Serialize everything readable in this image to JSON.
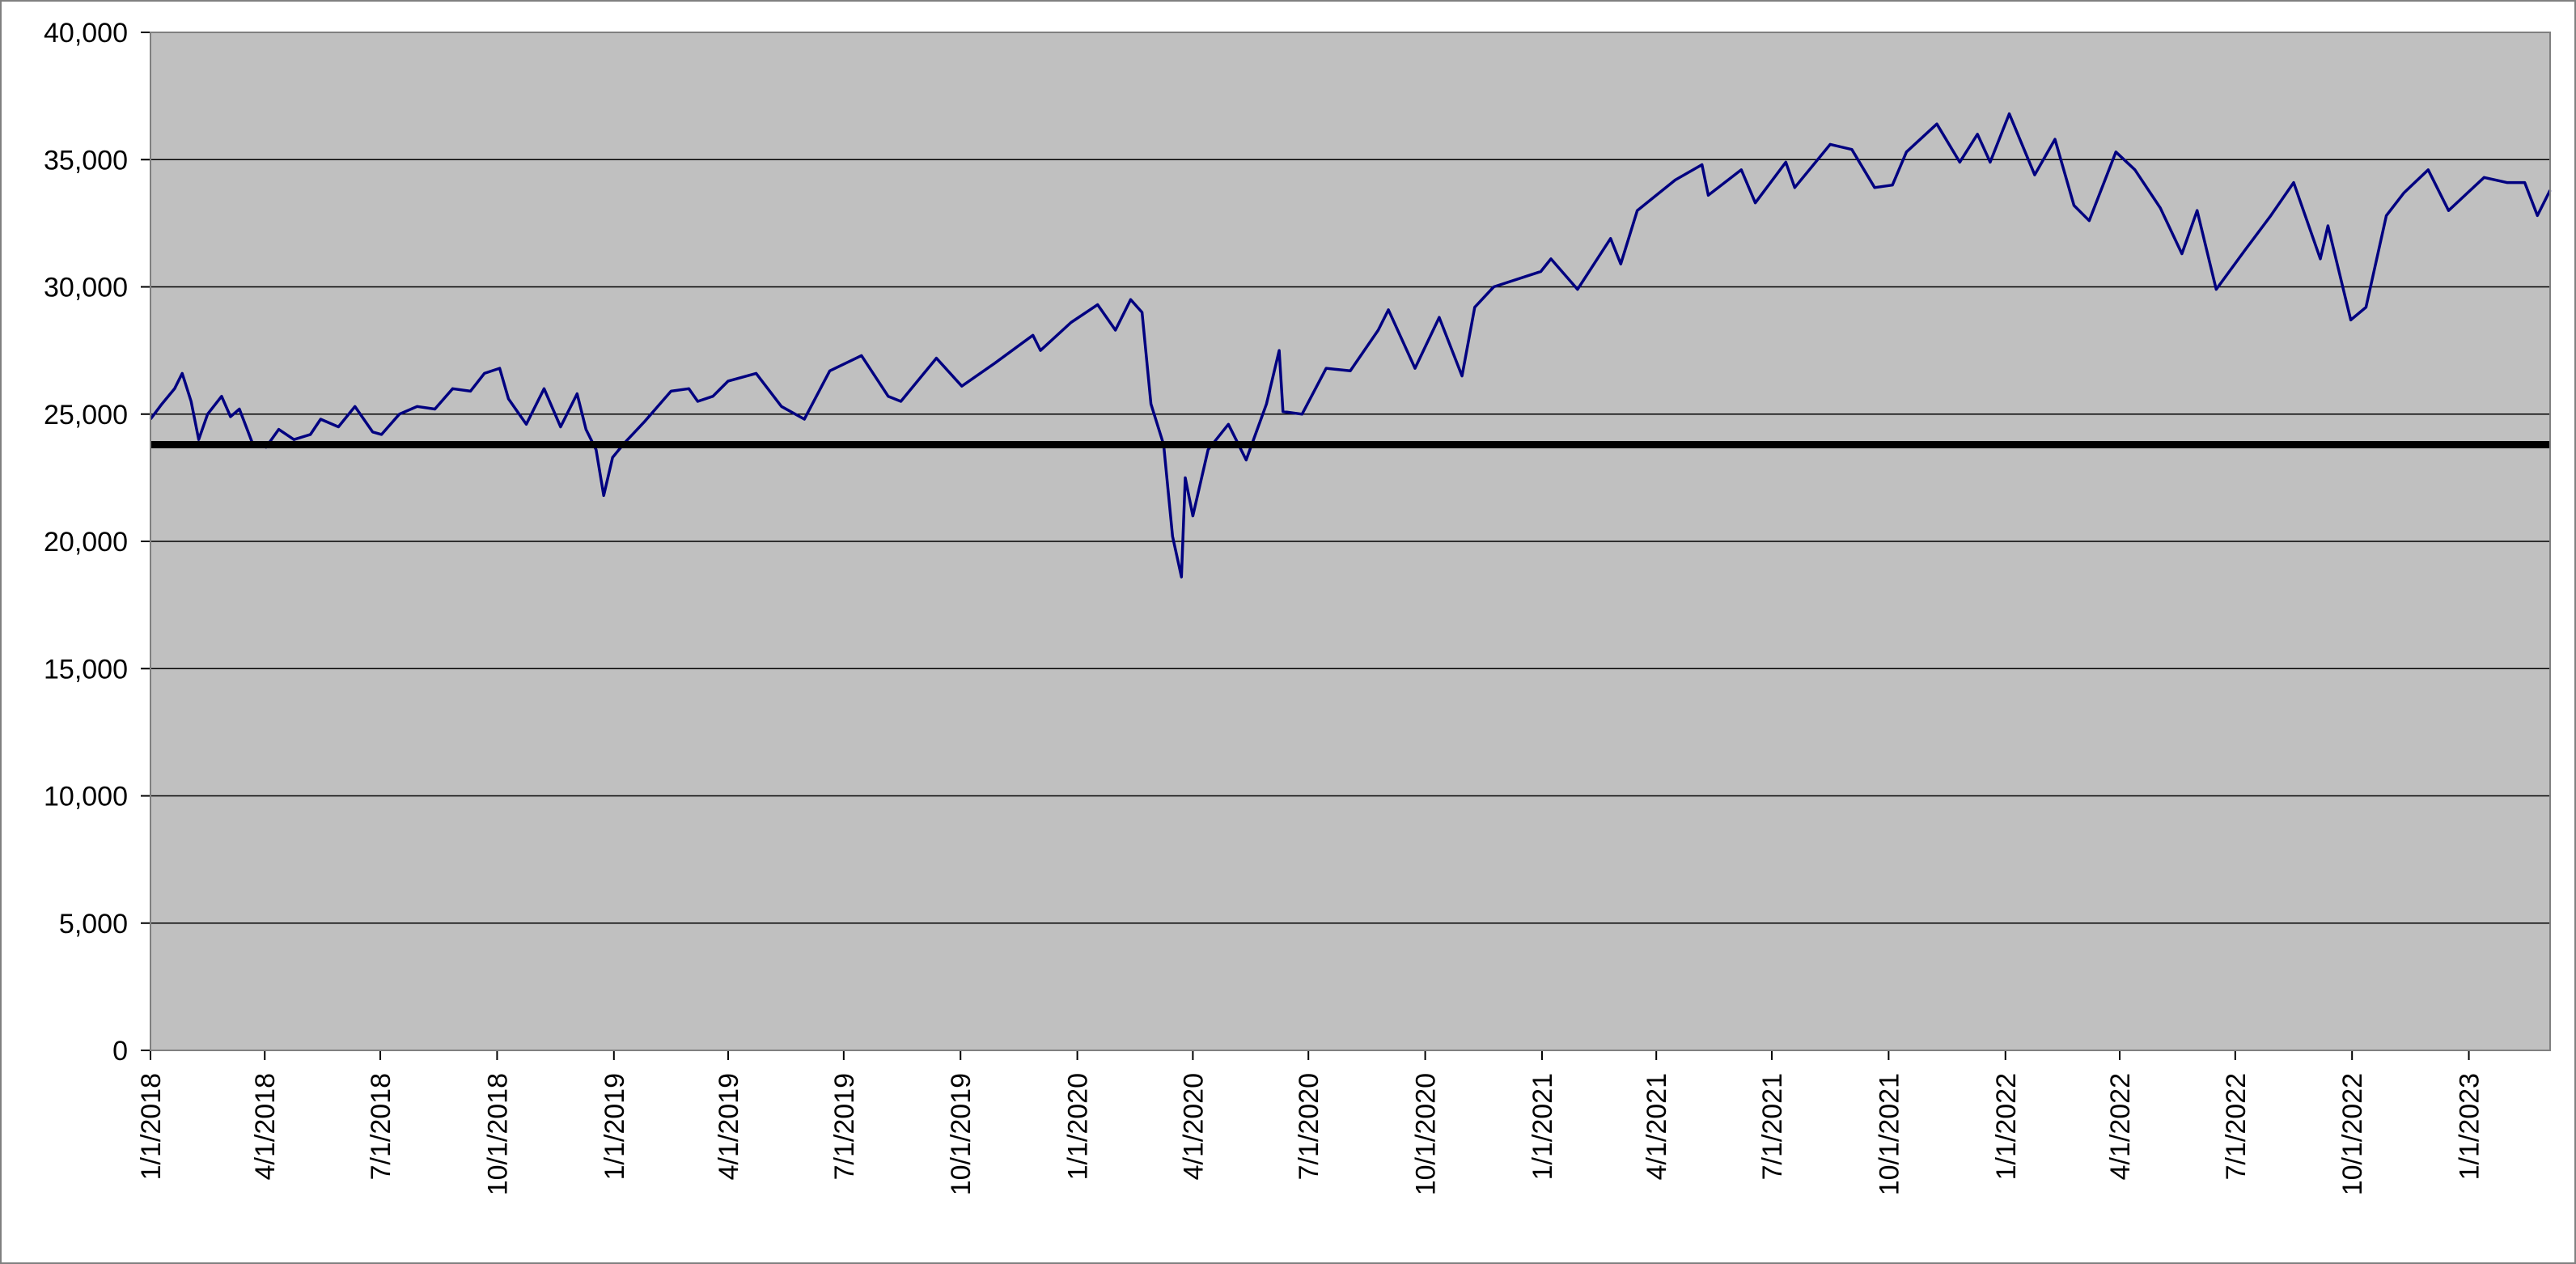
{
  "chart_data": {
    "type": "line",
    "title": "",
    "xlabel": "",
    "ylabel": "",
    "ylim": [
      0,
      40000
    ],
    "y_ticks": [
      0,
      5000,
      10000,
      15000,
      20000,
      25000,
      30000,
      35000,
      40000
    ],
    "y_tick_labels": [
      "0",
      "5,000",
      "10,000",
      "15,000",
      "20,000",
      "25,000",
      "30,000",
      "35,000",
      "40,000"
    ],
    "xlim": [
      "2018-01-01",
      "2023-03-06"
    ],
    "x_tick_labels": [
      "1/1/2018",
      "4/1/2018",
      "7/1/2018",
      "10/1/2018",
      "1/1/2019",
      "4/1/2019",
      "7/1/2019",
      "10/1/2019",
      "1/1/2020",
      "4/1/2020",
      "7/1/2020",
      "10/1/2020",
      "1/1/2021",
      "4/1/2021",
      "7/1/2021",
      "10/1/2021",
      "1/1/2022",
      "4/1/2022",
      "7/1/2022",
      "10/1/2022",
      "1/1/2023"
    ],
    "x_tick_dates": [
      "2018-01-01",
      "2018-04-01",
      "2018-07-01",
      "2018-10-01",
      "2019-01-01",
      "2019-04-01",
      "2019-07-01",
      "2019-10-01",
      "2020-01-01",
      "2020-04-01",
      "2020-07-01",
      "2020-10-01",
      "2021-01-01",
      "2021-04-01",
      "2021-07-01",
      "2021-10-01",
      "2022-01-01",
      "2022-04-01",
      "2022-07-01",
      "2022-10-01",
      "2023-01-01"
    ],
    "grid": true,
    "legend": "none",
    "background_color": "#c0c0c0",
    "reference_line": {
      "value": 23800,
      "color": "#000000"
    },
    "series": [
      {
        "color": "#000080",
        "points": [
          [
            "2018-01-01",
            24800
          ],
          [
            "2018-01-10",
            25400
          ],
          [
            "2018-01-20",
            26000
          ],
          [
            "2018-01-26",
            26600
          ],
          [
            "2018-02-02",
            25500
          ],
          [
            "2018-02-08",
            24000
          ],
          [
            "2018-02-15",
            25000
          ],
          [
            "2018-02-26",
            25700
          ],
          [
            "2018-03-05",
            24900
          ],
          [
            "2018-03-12",
            25200
          ],
          [
            "2018-03-22",
            23900
          ],
          [
            "2018-04-02",
            23700
          ],
          [
            "2018-04-12",
            24400
          ],
          [
            "2018-04-24",
            24000
          ],
          [
            "2018-05-07",
            24200
          ],
          [
            "2018-05-15",
            24800
          ],
          [
            "2018-05-29",
            24500
          ],
          [
            "2018-06-11",
            25300
          ],
          [
            "2018-06-25",
            24300
          ],
          [
            "2018-07-02",
            24200
          ],
          [
            "2018-07-16",
            25000
          ],
          [
            "2018-07-30",
            25300
          ],
          [
            "2018-08-13",
            25200
          ],
          [
            "2018-08-27",
            26000
          ],
          [
            "2018-09-10",
            25900
          ],
          [
            "2018-09-21",
            26600
          ],
          [
            "2018-10-03",
            26800
          ],
          [
            "2018-10-10",
            25600
          ],
          [
            "2018-10-24",
            24600
          ],
          [
            "2018-11-07",
            26000
          ],
          [
            "2018-11-20",
            24500
          ],
          [
            "2018-12-03",
            25800
          ],
          [
            "2018-12-10",
            24400
          ],
          [
            "2018-12-18",
            23600
          ],
          [
            "2018-12-24",
            21800
          ],
          [
            "2018-12-31",
            23300
          ],
          [
            "2019-01-10",
            23900
          ],
          [
            "2019-01-25",
            24700
          ],
          [
            "2019-02-15",
            25900
          ],
          [
            "2019-03-01",
            26000
          ],
          [
            "2019-03-08",
            25500
          ],
          [
            "2019-03-20",
            25700
          ],
          [
            "2019-04-01",
            26300
          ],
          [
            "2019-04-23",
            26600
          ],
          [
            "2019-05-13",
            25300
          ],
          [
            "2019-05-31",
            24800
          ],
          [
            "2019-06-20",
            26700
          ],
          [
            "2019-07-15",
            27300
          ],
          [
            "2019-08-05",
            25700
          ],
          [
            "2019-08-15",
            25500
          ],
          [
            "2019-09-12",
            27200
          ],
          [
            "2019-10-02",
            26100
          ],
          [
            "2019-10-28",
            27000
          ],
          [
            "2019-11-27",
            28100
          ],
          [
            "2019-12-03",
            27500
          ],
          [
            "2019-12-27",
            28600
          ],
          [
            "2020-01-17",
            29300
          ],
          [
            "2020-01-31",
            28300
          ],
          [
            "2020-02-12",
            29500
          ],
          [
            "2020-02-21",
            29000
          ],
          [
            "2020-02-28",
            25400
          ],
          [
            "2020-03-09",
            23800
          ],
          [
            "2020-03-16",
            20200
          ],
          [
            "2020-03-23",
            18600
          ],
          [
            "2020-03-26",
            22500
          ],
          [
            "2020-04-01",
            21000
          ],
          [
            "2020-04-13",
            23600
          ],
          [
            "2020-04-29",
            24600
          ],
          [
            "2020-05-13",
            23200
          ],
          [
            "2020-05-29",
            25400
          ],
          [
            "2020-06-08",
            27500
          ],
          [
            "2020-06-11",
            25100
          ],
          [
            "2020-06-26",
            25000
          ],
          [
            "2020-07-15",
            26800
          ],
          [
            "2020-08-03",
            26700
          ],
          [
            "2020-08-25",
            28300
          ],
          [
            "2020-09-02",
            29100
          ],
          [
            "2020-09-23",
            26800
          ],
          [
            "2020-10-12",
            28800
          ],
          [
            "2020-10-30",
            26500
          ],
          [
            "2020-11-09",
            29200
          ],
          [
            "2020-11-24",
            30000
          ],
          [
            "2020-12-31",
            30600
          ],
          [
            "2021-01-08",
            31100
          ],
          [
            "2021-01-29",
            29900
          ],
          [
            "2021-02-24",
            31900
          ],
          [
            "2021-03-04",
            30900
          ],
          [
            "2021-03-17",
            33000
          ],
          [
            "2021-04-16",
            34200
          ],
          [
            "2021-05-07",
            34800
          ],
          [
            "2021-05-12",
            33600
          ],
          [
            "2021-06-07",
            34600
          ],
          [
            "2021-06-18",
            33300
          ],
          [
            "2021-07-12",
            34900
          ],
          [
            "2021-07-19",
            33900
          ],
          [
            "2021-08-16",
            35600
          ],
          [
            "2021-09-02",
            35400
          ],
          [
            "2021-09-20",
            33900
          ],
          [
            "2021-10-04",
            34000
          ],
          [
            "2021-10-15",
            35300
          ],
          [
            "2021-11-08",
            36400
          ],
          [
            "2021-11-26",
            34900
          ],
          [
            "2021-12-10",
            36000
          ],
          [
            "2021-12-20",
            34900
          ],
          [
            "2022-01-04",
            36800
          ],
          [
            "2022-01-24",
            34400
          ],
          [
            "2022-02-09",
            35800
          ],
          [
            "2022-02-24",
            33200
          ],
          [
            "2022-03-08",
            32600
          ],
          [
            "2022-03-29",
            35300
          ],
          [
            "2022-04-13",
            34600
          ],
          [
            "2022-05-03",
            33100
          ],
          [
            "2022-05-20",
            31300
          ],
          [
            "2022-06-01",
            33000
          ],
          [
            "2022-06-16",
            29900
          ],
          [
            "2022-07-08",
            31400
          ],
          [
            "2022-07-29",
            32800
          ],
          [
            "2022-08-16",
            34100
          ],
          [
            "2022-09-06",
            31100
          ],
          [
            "2022-09-12",
            32400
          ],
          [
            "2022-09-30",
            28700
          ],
          [
            "2022-10-12",
            29200
          ],
          [
            "2022-10-28",
            32800
          ],
          [
            "2022-11-11",
            33700
          ],
          [
            "2022-11-30",
            34600
          ],
          [
            "2022-12-16",
            33000
          ],
          [
            "2023-01-13",
            34300
          ],
          [
            "2023-01-31",
            34100
          ],
          [
            "2023-02-14",
            34100
          ],
          [
            "2023-02-24",
            32800
          ],
          [
            "2023-03-06",
            33800
          ]
        ]
      }
    ]
  }
}
